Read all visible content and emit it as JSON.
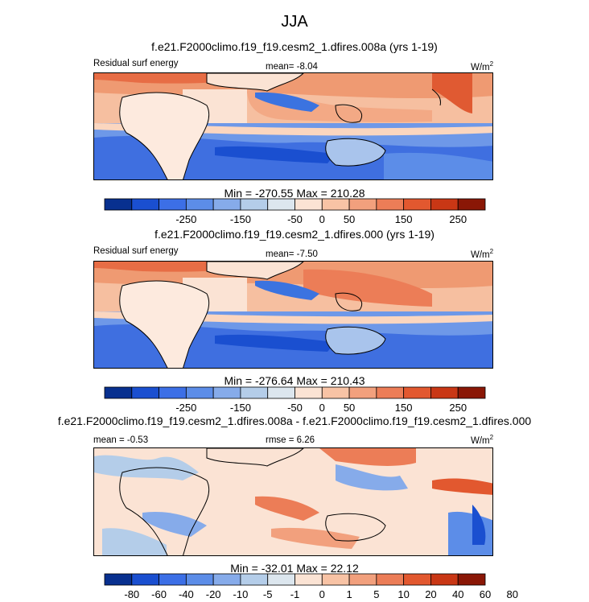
{
  "figure_title": "JJA",
  "chart_data": [
    {
      "type": "heatmap",
      "title": "f.e21.F2000climo.f19_f19.cesm2_1.dfires.008a (yrs 1-19)",
      "left_label": "Residual surf energy",
      "center_label": "mean=  -8.04",
      "units_base": "W/m",
      "units_exp": "2",
      "stats": "Min = -270.55 Max = 210.28",
      "colorbar": {
        "colors": [
          "#08308f",
          "#1a4fd0",
          "#3c6fe6",
          "#5c8de8",
          "#86abea",
          "#b4cde9",
          "#dce6ee",
          "#fbe3d4",
          "#f8c3a5",
          "#f2a07d",
          "#ec7d57",
          "#e2582f",
          "#c93715",
          "#8a1706"
        ],
        "tick_labels": [
          "-250",
          "-150",
          "-50",
          "0",
          "50",
          "150",
          "250"
        ],
        "tick_positions": [
          2,
          4,
          6,
          7,
          8,
          10,
          12
        ]
      }
    },
    {
      "type": "heatmap",
      "title": "f.e21.F2000climo.f19_f19.cesm2_1.dfires.000 (yrs 1-19)",
      "left_label": "Residual surf energy",
      "center_label": "mean=  -7.50",
      "units_base": "W/m",
      "units_exp": "2",
      "stats": "Min = -276.64 Max = 210.43",
      "colorbar": {
        "colors": [
          "#08308f",
          "#1a4fd0",
          "#3c6fe6",
          "#5c8de8",
          "#86abea",
          "#b4cde9",
          "#dce6ee",
          "#fbe3d4",
          "#f8c3a5",
          "#f2a07d",
          "#ec7d57",
          "#e2582f",
          "#c93715",
          "#8a1706"
        ],
        "tick_labels": [
          "-250",
          "-150",
          "-50",
          "0",
          "50",
          "150",
          "250"
        ],
        "tick_positions": [
          2,
          4,
          6,
          7,
          8,
          10,
          12
        ]
      }
    },
    {
      "type": "heatmap",
      "title": "f.e21.F2000climo.f19_f19.cesm2_1.dfires.008a - f.e21.F2000climo.f19_f19.cesm2_1.dfires.000",
      "left_label": "mean =  -0.53",
      "center_label": "rmse =  6.26",
      "units_base": "W/m",
      "units_exp": "2",
      "stats": "Min = -32.01 Max = 22.12",
      "colorbar": {
        "colors": [
          "#08308f",
          "#1a4fd0",
          "#3c6fe6",
          "#5c8de8",
          "#86abea",
          "#b4cde9",
          "#dce6ee",
          "#fbe3d4",
          "#f8c3a5",
          "#f2a07d",
          "#ec7d57",
          "#e2582f",
          "#c93715",
          "#8a1706"
        ],
        "tick_labels": [
          "-80",
          "-60",
          "-40",
          "-20",
          "-10",
          "-5",
          "-1",
          "0",
          "1",
          "5",
          "10",
          "20",
          "40",
          "60",
          "80"
        ],
        "tick_positions": [
          0,
          1,
          2,
          3,
          4,
          5,
          6,
          7,
          8,
          9,
          10,
          11,
          12,
          13,
          14
        ]
      }
    }
  ]
}
